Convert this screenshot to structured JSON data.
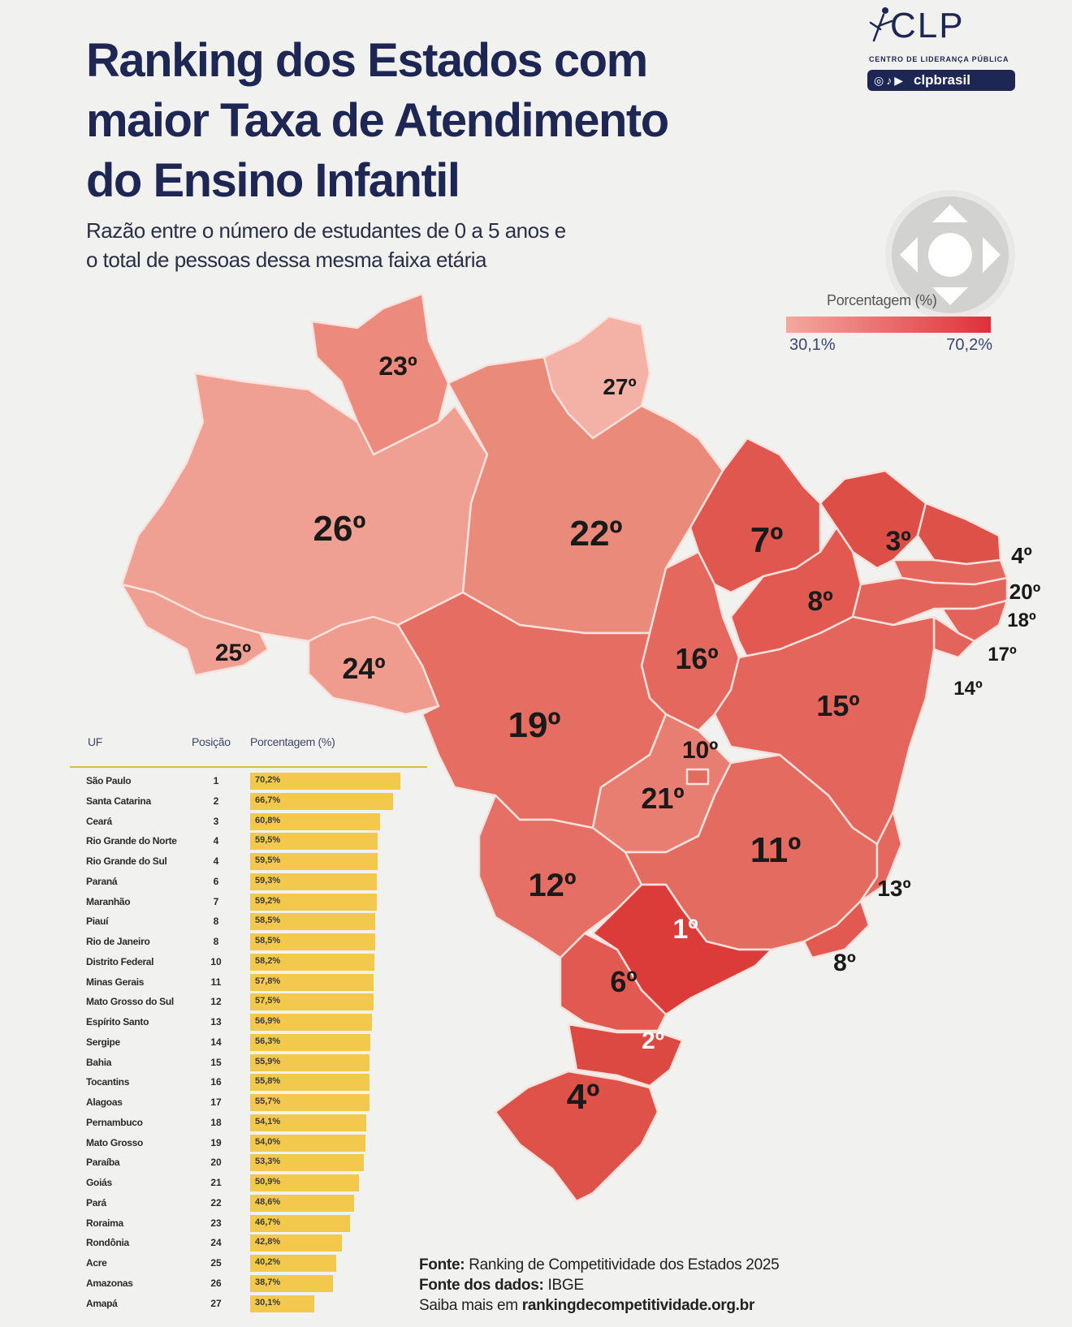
{
  "header": {
    "title_lines": [
      "Ranking dos Estados com",
      "maior Taxa de Atendimento",
      "do Ensino Infantil"
    ],
    "subtitle_lines": [
      "Razão entre o número de estudantes de 0 a 5 anos e",
      "o total de pessoas dessa mesma faixa etária"
    ]
  },
  "logo": {
    "brand": "CLP",
    "org_name": "CENTRO DE LIDERANÇA PÚBLICA",
    "social_handle": "clpbrasil",
    "social_icons": [
      "instagram-icon",
      "tiktok-icon",
      "youtube-icon"
    ]
  },
  "legend": {
    "title": "Porcentagem (%)",
    "min_label": "30,1%",
    "max_label": "70,2%",
    "min_value": 30.1,
    "max_value": 70.2,
    "color_low": "#f3a99e",
    "color_high": "#e0303a"
  },
  "map_labels": {
    "RR": "23º",
    "AP": "27º",
    "AM": "26º",
    "PA": "22º",
    "AC": "25º",
    "RO": "24º",
    "MA": "7º",
    "CE": "3º",
    "PI": "8º",
    "RN": "4º",
    "PB": "20º",
    "PE": "18º",
    "AL": "17º",
    "SE": "14º",
    "TO": "16º",
    "BA": "15º",
    "MT": "19º",
    "DF": "10º",
    "GO": "21º",
    "MG": "11º",
    "ES": "13º",
    "RJ": "8º",
    "MS": "12º",
    "SP": "1º",
    "PR": "6º",
    "SC": "2º",
    "RS": "4º"
  },
  "table": {
    "headers": {
      "uf": "UF",
      "pos": "Posição",
      "pct": "Porcentagem (%)"
    },
    "max_value": 70.2,
    "rows": [
      {
        "uf": "São Paulo",
        "pos": "1",
        "pct": "70,2%",
        "value": 70.2
      },
      {
        "uf": "Santa Catarina",
        "pos": "2",
        "pct": "66,7%",
        "value": 66.7
      },
      {
        "uf": "Ceará",
        "pos": "3",
        "pct": "60,8%",
        "value": 60.8
      },
      {
        "uf": "Rio Grande do Norte",
        "pos": "4",
        "pct": "59,5%",
        "value": 59.5
      },
      {
        "uf": "Rio Grande do Sul",
        "pos": "4",
        "pct": "59,5%",
        "value": 59.5
      },
      {
        "uf": "Paraná",
        "pos": "6",
        "pct": "59,3%",
        "value": 59.3
      },
      {
        "uf": "Maranhão",
        "pos": "7",
        "pct": "59,2%",
        "value": 59.2
      },
      {
        "uf": "Piauí",
        "pos": "8",
        "pct": "58,5%",
        "value": 58.5
      },
      {
        "uf": "Rio de Janeiro",
        "pos": "8",
        "pct": "58,5%",
        "value": 58.5
      },
      {
        "uf": "Distrito Federal",
        "pos": "10",
        "pct": "58,2%",
        "value": 58.2
      },
      {
        "uf": "Minas Gerais",
        "pos": "11",
        "pct": "57,8%",
        "value": 57.8
      },
      {
        "uf": "Mato Grosso do Sul",
        "pos": "12",
        "pct": "57,5%",
        "value": 57.5
      },
      {
        "uf": "Espírito Santo",
        "pos": "13",
        "pct": "56,9%",
        "value": 56.9
      },
      {
        "uf": "Sergipe",
        "pos": "14",
        "pct": "56,3%",
        "value": 56.3
      },
      {
        "uf": "Bahia",
        "pos": "15",
        "pct": "55,9%",
        "value": 55.9
      },
      {
        "uf": "Tocantins",
        "pos": "16",
        "pct": "55,8%",
        "value": 55.8
      },
      {
        "uf": "Alagoas",
        "pos": "17",
        "pct": "55,7%",
        "value": 55.7
      },
      {
        "uf": "Pernambuco",
        "pos": "18",
        "pct": "54,1%",
        "value": 54.1
      },
      {
        "uf": "Mato Grosso",
        "pos": "19",
        "pct": "54,0%",
        "value": 54.0
      },
      {
        "uf": "Paraíba",
        "pos": "20",
        "pct": "53,3%",
        "value": 53.3
      },
      {
        "uf": "Goiás",
        "pos": "21",
        "pct": "50,9%",
        "value": 50.9
      },
      {
        "uf": "Pará",
        "pos": "22",
        "pct": "48,6%",
        "value": 48.6
      },
      {
        "uf": "Roraima",
        "pos": "23",
        "pct": "46,7%",
        "value": 46.7
      },
      {
        "uf": "Rondônia",
        "pos": "24",
        "pct": "42,8%",
        "value": 42.8
      },
      {
        "uf": "Acre",
        "pos": "25",
        "pct": "40,2%",
        "value": 40.2
      },
      {
        "uf": "Amazonas",
        "pos": "26",
        "pct": "38,7%",
        "value": 38.7
      },
      {
        "uf": "Amapá",
        "pos": "27",
        "pct": "30,1%",
        "value": 30.1
      }
    ]
  },
  "sources": {
    "fonte_label": "Fonte:",
    "fonte_text": "Ranking de Competitividade dos Estados 2025",
    "dados_label": "Fonte dos dados:",
    "dados_text": "IBGE",
    "saiba_text": "Saiba mais em",
    "saiba_link": "rankingdecompetitividade.org.br"
  }
}
